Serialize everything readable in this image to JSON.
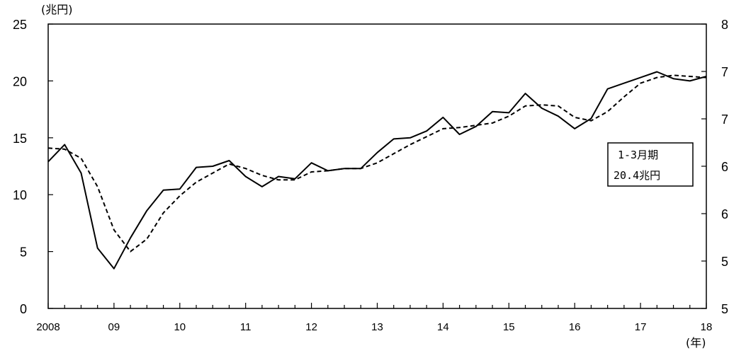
{
  "chart_data": {
    "type": "line",
    "y_unit_label": "(兆円)",
    "x_unit_label": "(年)",
    "ylim": [
      0,
      25
    ],
    "y_ticks": [
      0,
      5,
      10,
      15,
      20,
      25
    ],
    "right_axis_tick_labels": [
      "5",
      "5",
      "6",
      "6",
      "7",
      "7",
      "8"
    ],
    "x_tick_labels": [
      "2008",
      "09",
      "10",
      "11",
      "12",
      "13",
      "14",
      "15",
      "16",
      "17",
      "18"
    ],
    "x_range": [
      2008.0,
      2018.0
    ],
    "grid": false,
    "series": [
      {
        "style": "solid",
        "x": [
          2008.0,
          2008.25,
          2008.5,
          2008.75,
          2009.0,
          2009.25,
          2009.5,
          2009.75,
          2010.0,
          2010.25,
          2010.5,
          2010.75,
          2011.0,
          2011.25,
          2011.5,
          2011.75,
          2012.0,
          2012.25,
          2012.5,
          2012.75,
          2013.0,
          2013.25,
          2013.5,
          2013.75,
          2014.0,
          2014.25,
          2014.5,
          2014.75,
          2015.0,
          2015.25,
          2015.5,
          2015.75,
          2016.0,
          2016.25,
          2016.5,
          2016.75,
          2017.0,
          2017.25,
          2017.5,
          2017.75,
          2018.0
        ],
        "values": [
          12.9,
          14.4,
          11.9,
          5.3,
          3.5,
          6.2,
          8.6,
          10.4,
          10.5,
          12.4,
          12.5,
          13.0,
          11.6,
          10.7,
          11.6,
          11.4,
          12.8,
          12.1,
          12.3,
          12.3,
          13.7,
          14.9,
          15.0,
          15.6,
          16.8,
          15.3,
          16.0,
          17.3,
          17.2,
          18.9,
          17.6,
          16.9,
          15.8,
          16.7,
          19.3,
          19.8,
          20.3,
          20.8,
          20.2,
          20.0,
          20.4
        ]
      },
      {
        "style": "dashed",
        "x": [
          2008.0,
          2008.25,
          2008.5,
          2008.75,
          2009.0,
          2009.25,
          2009.5,
          2009.75,
          2010.0,
          2010.25,
          2010.5,
          2010.75,
          2011.0,
          2011.25,
          2011.5,
          2011.75,
          2012.0,
          2012.25,
          2012.5,
          2012.75,
          2013.0,
          2013.25,
          2013.5,
          2013.75,
          2014.0,
          2014.25,
          2014.5,
          2014.75,
          2015.0,
          2015.25,
          2015.5,
          2015.75,
          2016.0,
          2016.25,
          2016.5,
          2016.75,
          2017.0,
          2017.25,
          2017.5,
          2017.75,
          2018.0
        ],
        "values": [
          14.1,
          14.0,
          13.2,
          10.7,
          6.9,
          5.0,
          6.1,
          8.4,
          9.9,
          11.1,
          11.9,
          12.7,
          12.3,
          11.7,
          11.3,
          11.3,
          12.0,
          12.1,
          12.3,
          12.3,
          12.8,
          13.6,
          14.4,
          15.1,
          15.8,
          15.9,
          16.1,
          16.3,
          16.9,
          17.8,
          17.9,
          17.8,
          16.8,
          16.5,
          17.3,
          18.6,
          19.8,
          20.3,
          20.5,
          20.4,
          20.3
        ]
      }
    ],
    "annotation": {
      "lines": [
        "1-3月期",
        "20.4兆円"
      ]
    }
  }
}
